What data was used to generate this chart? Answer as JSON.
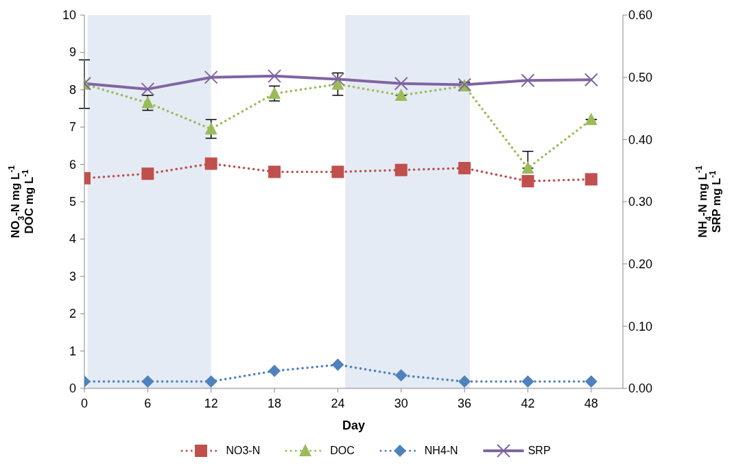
{
  "chart_data": {
    "type": "line",
    "xlabel": "Day",
    "ylabel": "NO$_{3}$-N mg L$^{-1}$\nDOC mg L$^{-1}$",
    "y2label": "NH$_{4}$-N mg L$^{-1}$\nSRP mg L$^{-1}$",
    "x": [
      0,
      6,
      12,
      18,
      24,
      30,
      36,
      42,
      48
    ],
    "xlim": [
      0,
      51
    ],
    "xticks": [
      0,
      6,
      12,
      18,
      24,
      30,
      36,
      42,
      48
    ],
    "ylim": [
      0,
      10
    ],
    "yticks": [
      0,
      1,
      2,
      3,
      4,
      5,
      6,
      7,
      8,
      9,
      10
    ],
    "y2lim": [
      0,
      0.6
    ],
    "y2ticks": [
      {
        "value": 0,
        "label": "0.00"
      },
      {
        "value": 0.1,
        "label": "0.10"
      },
      {
        "value": 0.2,
        "label": "0.20"
      },
      {
        "value": 0.3,
        "label": "0.30"
      },
      {
        "value": 0.4,
        "label": "0.40"
      },
      {
        "value": 0.5,
        "label": "0.50"
      },
      {
        "value": 0.6,
        "label": "0.60"
      }
    ],
    "series": [
      {
        "name": "NO3-N",
        "color": "#c0504d",
        "marker": "square",
        "line_style": "dotted",
        "values": [
          5.63,
          5.75,
          6.02,
          5.8,
          5.8,
          5.85,
          5.9,
          5.55,
          5.6
        ]
      },
      {
        "name": "DOC",
        "color": "#9bbb59",
        "marker": "triangle",
        "line_style": "dotted",
        "values": [
          8.15,
          7.65,
          6.95,
          7.9,
          8.15,
          7.85,
          8.1,
          5.9,
          7.2
        ],
        "errors": [
          0.65,
          0.2,
          0.25,
          0.2,
          0.3,
          null,
          0.1,
          [
            5.9,
            6.35
          ],
          null
        ]
      },
      {
        "name": "NH4-N",
        "color": "#4f81bd",
        "marker": "diamond",
        "line_style": "dotted",
        "axis": "y2",
        "values": [
          0.011,
          0.011,
          0.011,
          0.028,
          0.038,
          0.021,
          0.011,
          0.011,
          0.011
        ]
      },
      {
        "name": "SRP",
        "color": "#8064a2",
        "marker": "cross",
        "line_style": "solid",
        "axis": "y2",
        "values": [
          0.49,
          0.481,
          0.5,
          0.502,
          0.497,
          0.49,
          0.488,
          0.495,
          0.496
        ]
      }
    ],
    "bands": [
      {
        "axis": "x",
        "from": 0.3,
        "to": 12,
        "color": "#e4ebf4"
      },
      {
        "axis": "x",
        "from": 24.7,
        "to": 36.5,
        "color": "#e4ebf4"
      }
    ],
    "grid": false,
    "legend": "bottom"
  }
}
